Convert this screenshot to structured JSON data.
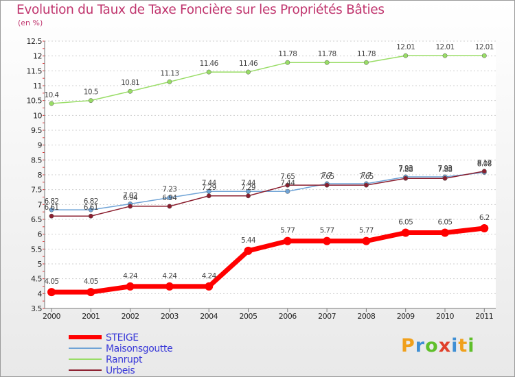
{
  "title": "Evolution du Taux de Taxe Foncière sur les Propriétés Bâties",
  "subtitle": "(en %)",
  "logo": {
    "text": "Proxiti",
    "letters": [
      {
        "ch": "P",
        "color": "#f0a01c"
      },
      {
        "ch": "r",
        "color": "#3f8fd4"
      },
      {
        "ch": "o",
        "color": "#5fbf2a"
      },
      {
        "ch": "x",
        "color": "#e0402a"
      },
      {
        "ch": "i",
        "color": "#3f8fd4"
      },
      {
        "ch": "t",
        "color": "#f0a01c"
      },
      {
        "ch": "i",
        "color": "#5fbf2a"
      }
    ]
  },
  "chart_data": {
    "type": "line",
    "title": "Evolution du Taux de Taxe Foncière sur les Propriétés Bâties",
    "ylabel": "(en %)",
    "x": [
      "2000",
      "2001",
      "2002",
      "2003",
      "2004",
      "2005",
      "2006",
      "2007",
      "2008",
      "2009",
      "2010",
      "2011"
    ],
    "ylim": [
      3.5,
      12.5
    ],
    "yticks": [
      "3.5",
      "4",
      "4.5",
      "5",
      "5.5",
      "6",
      "6.5",
      "7",
      "7.5",
      "8",
      "8.5",
      "9",
      "9.5",
      "10",
      "10.5",
      "11",
      "11.5",
      "12",
      "12.5"
    ],
    "grid": "horizontal dashed",
    "legend": "bottom-left",
    "series": [
      {
        "name": "STEIGE",
        "color": "#ff0000",
        "values": [
          4.05,
          4.05,
          4.24,
          4.24,
          4.24,
          5.44,
          5.77,
          5.77,
          5.77,
          6.05,
          6.05,
          6.2
        ],
        "labels": [
          "4.05",
          "4.05",
          "4.24",
          "4.24",
          "4.24",
          "5.44",
          "5.77",
          "5.77",
          "5.77",
          "6.05",
          "6.05",
          "6.2"
        ]
      },
      {
        "name": "Maisonsgoutte",
        "color": "#6fa3d6",
        "values": [
          6.82,
          6.82,
          7.02,
          7.23,
          7.44,
          7.44,
          7.44,
          7.7,
          7.7,
          7.93,
          7.93,
          8.08
        ],
        "labels": [
          "6.82",
          "6.82",
          "7.02",
          "7.23",
          "7.44",
          "7.44",
          "7.44",
          "7.7",
          "7.7",
          "7.93",
          "7.93",
          "8.08"
        ]
      },
      {
        "name": "Ranrupt",
        "color": "#99dd66",
        "values": [
          10.4,
          10.5,
          10.81,
          11.13,
          11.46,
          11.46,
          11.78,
          11.78,
          11.78,
          12.01,
          12.01,
          12.01
        ],
        "labels": [
          "10.4",
          "10.5",
          "10.81",
          "11.13",
          "11.46",
          "11.46",
          "11.78",
          "11.78",
          "11.78",
          "12.01",
          "12.01",
          "12.01"
        ]
      },
      {
        "name": "Urbeis",
        "color": "#8b1f2f",
        "values": [
          6.61,
          6.61,
          6.94,
          6.94,
          7.29,
          7.29,
          7.65,
          7.65,
          7.65,
          7.88,
          7.88,
          8.12
        ],
        "labels": [
          "6.61",
          "6.61",
          "6.94",
          "6.94",
          "7.29",
          "7.29",
          "7.65",
          "7.65",
          "7.65",
          "7.88",
          "7.88",
          "8.12"
        ]
      }
    ]
  }
}
